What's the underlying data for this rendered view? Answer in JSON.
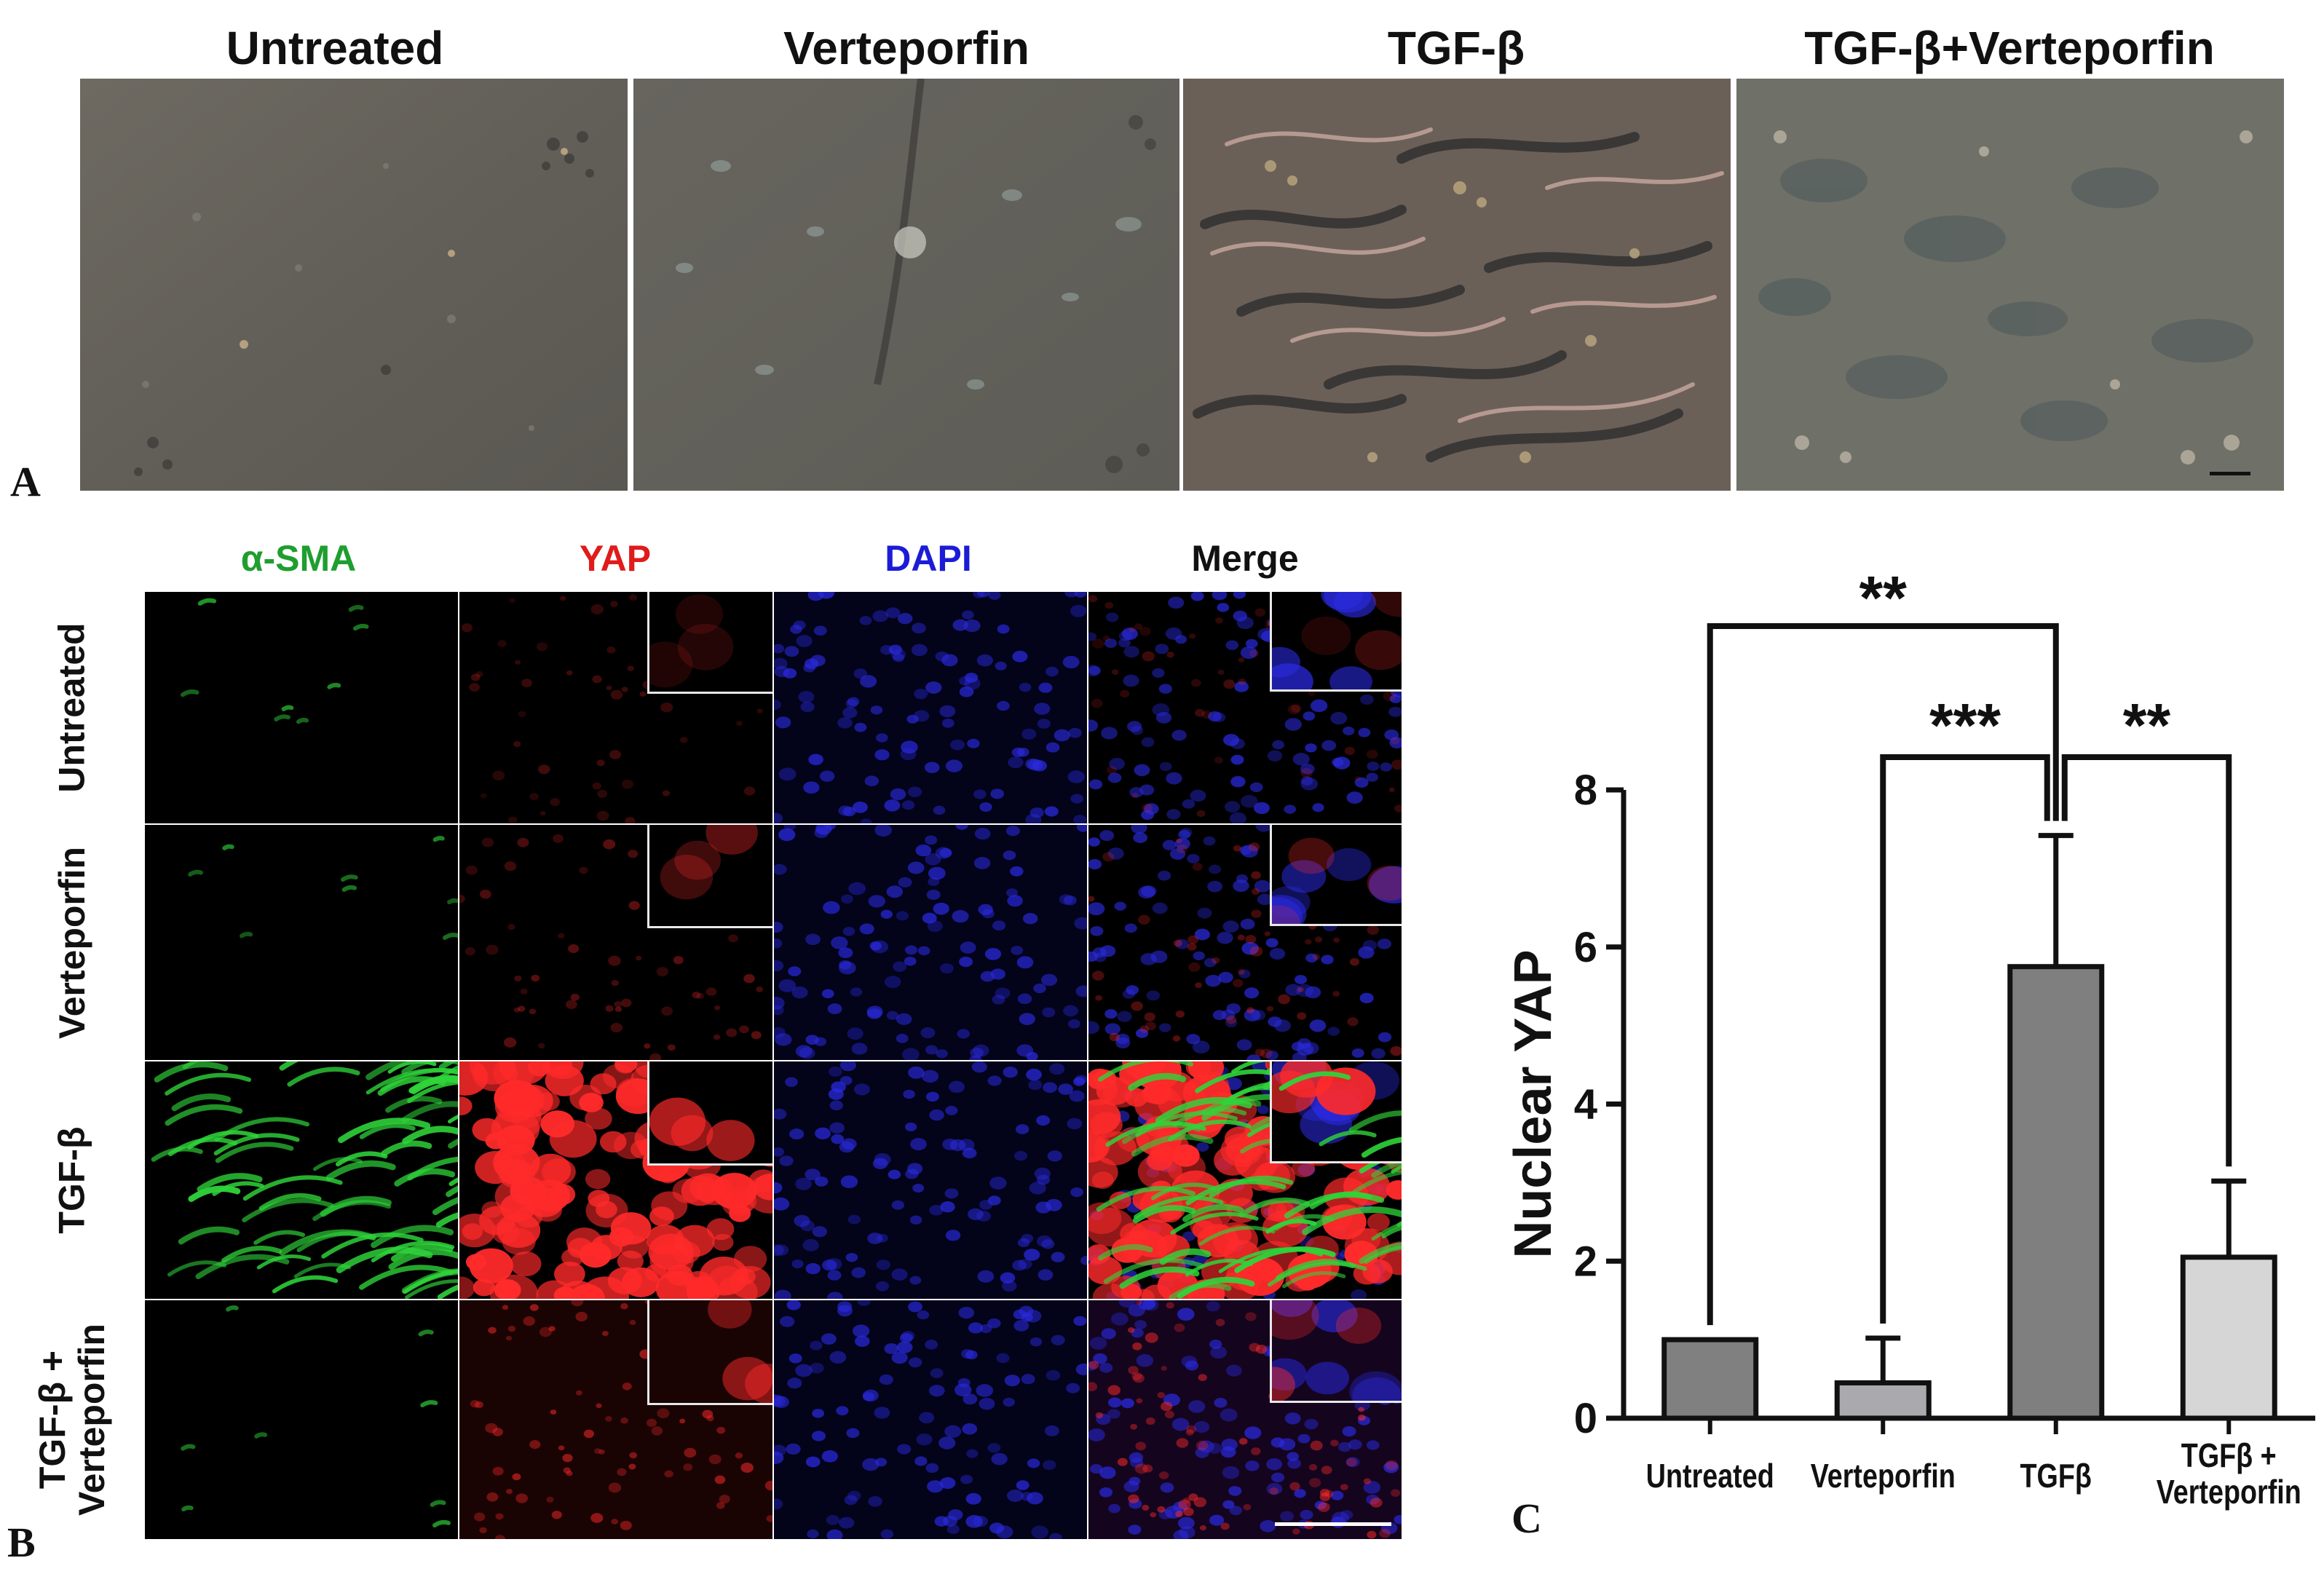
{
  "panel_a": {
    "letter": "A",
    "titles": [
      "Untreated",
      "Verteporfin",
      "TGF-β",
      "TGF-β+Verteporfin"
    ]
  },
  "panel_b": {
    "letter": "B",
    "columns": [
      {
        "label": "α-SMA",
        "color": "#1e9e2f"
      },
      {
        "label": "YAP",
        "color": "#e01b1b"
      },
      {
        "label": "DAPI",
        "color": "#1c1cd6"
      },
      {
        "label": "Merge",
        "color": "#111111"
      }
    ],
    "rows": [
      {
        "label": "Untreated"
      },
      {
        "label": "Verteporfin"
      },
      {
        "label": "TGF-β"
      },
      {
        "label_line1": "TGF-β +",
        "label_line2": "Verteporfin"
      }
    ]
  },
  "panel_c": {
    "letter": "C"
  },
  "chart_data": {
    "type": "bar",
    "categories": [
      "Untreated",
      "Verteporfin",
      "TGFβ",
      "TGFβ + Verteporfin"
    ],
    "category_lines": [
      [
        "Untreated"
      ],
      [
        "Verteporfin"
      ],
      [
        "TGFβ"
      ],
      [
        "TGFβ +",
        "Verteporfin"
      ]
    ],
    "values": [
      1.0,
      0.45,
      5.75,
      2.05
    ],
    "error_upper": [
      0,
      1.02,
      7.42,
      3.02
    ],
    "bar_colors": [
      "#808080",
      "#a9a9ae",
      "#7f7f7f",
      "#d6d6d6"
    ],
    "ylabel": "Nuclear YAP",
    "ylim": [
      0,
      8
    ],
    "yticks": [
      "0",
      "2",
      "4",
      "6",
      "8"
    ],
    "significance": [
      {
        "from": 0,
        "to": 2,
        "label": "**"
      },
      {
        "from": 1,
        "to": 2,
        "label": "***"
      },
      {
        "from": 2,
        "to": 3,
        "label": "**"
      }
    ]
  }
}
